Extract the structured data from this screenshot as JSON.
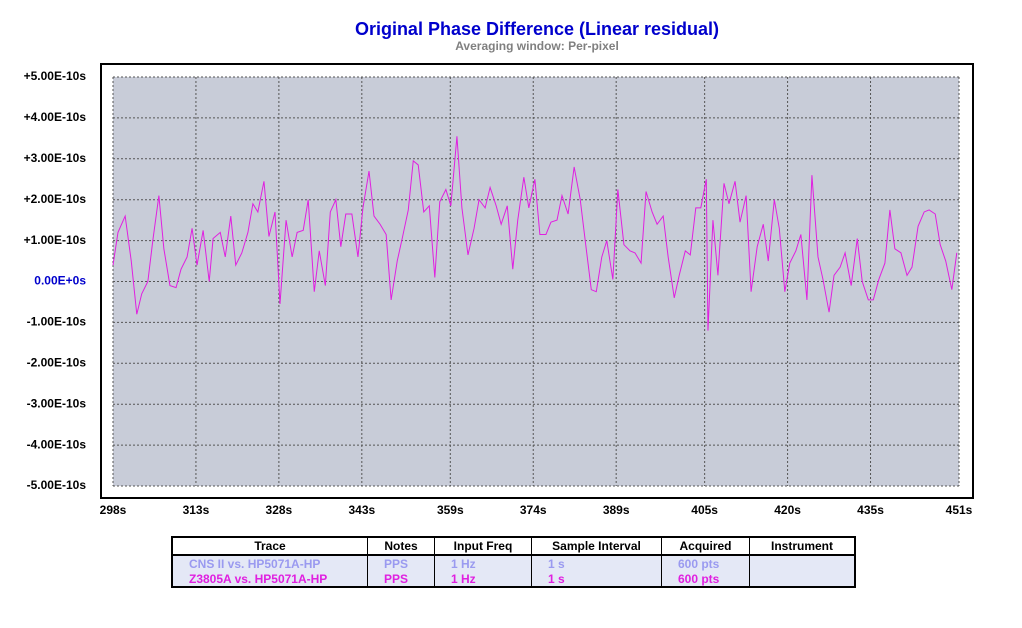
{
  "chart_data": {
    "type": "line",
    "title": "Original Phase Difference (Linear residual)",
    "subtitle": "Averaging window: Per-pixel",
    "xlim": [
      298,
      451
    ],
    "xticks": [
      {
        "value": 298,
        "label": "298s"
      },
      {
        "value": 313,
        "label": "313s"
      },
      {
        "value": 328,
        "label": "328s"
      },
      {
        "value": 343,
        "label": "343s"
      },
      {
        "value": 359,
        "label": "359s"
      },
      {
        "value": 374,
        "label": "374s"
      },
      {
        "value": 389,
        "label": "389s"
      },
      {
        "value": 405,
        "label": "405s"
      },
      {
        "value": 420,
        "label": "420s"
      },
      {
        "value": 435,
        "label": "435s"
      },
      {
        "value": 451,
        "label": "451s"
      }
    ],
    "ylim": [
      -5e-10,
      5e-10
    ],
    "yticks": [
      {
        "value": 5e-10,
        "label": "+5.00E-10s"
      },
      {
        "value": 4e-10,
        "label": "+4.00E-10s"
      },
      {
        "value": 3e-10,
        "label": "+3.00E-10s"
      },
      {
        "value": 2e-10,
        "label": "+2.00E-10s"
      },
      {
        "value": 1e-10,
        "label": "+1.00E-10s"
      },
      {
        "value": 0,
        "label": "0.00E+0s"
      },
      {
        "value": -1e-10,
        "label": "-1.00E-10s"
      },
      {
        "value": -2e-10,
        "label": "-2.00E-10s"
      },
      {
        "value": -3e-10,
        "label": "-3.00E-10s"
      },
      {
        "value": -4e-10,
        "label": "-4.00E-10s"
      },
      {
        "value": -5e-10,
        "label": "-5.00E-10s"
      }
    ],
    "grid": true,
    "x": [
      298.0,
      298.9,
      300.2,
      301.3,
      302.3,
      303.2,
      304.3,
      305.2,
      306.3,
      307.2,
      308.3,
      309.4,
      310.3,
      311.4,
      312.3,
      313.2,
      314.3,
      315.4,
      316.1,
      317.4,
      318.3,
      319.3,
      320.2,
      321.3,
      322.4,
      323.3,
      324.2,
      325.3,
      326.2,
      327.3,
      328.2,
      329.3,
      330.4,
      331.3,
      332.4,
      333.3,
      334.4,
      335.3,
      336.4,
      337.3,
      338.3,
      339.2,
      340.1,
      341.2,
      342.3,
      343.2,
      344.3,
      345.2,
      346.3,
      347.4,
      348.3,
      349.4,
      350.3,
      351.4,
      352.3,
      353.2,
      354.2,
      355.2,
      356.2,
      357.1,
      358.2,
      359.1,
      360.2,
      361.1,
      362.2,
      363.3,
      364.2,
      365.3,
      366.2,
      367.3,
      368.2,
      369.3,
      370.3,
      371.2,
      372.3,
      373.2,
      374.3,
      375.2,
      376.3,
      377.2,
      378.3,
      379.2,
      380.3,
      381.4,
      382.5,
      383.4,
      384.5,
      385.4,
      386.4,
      387.3,
      388.4,
      389.3,
      390.4,
      391.5,
      392.4,
      393.5,
      394.4,
      395.5,
      396.4,
      397.5,
      398.4,
      399.5,
      400.4,
      401.5,
      402.4,
      403.4,
      404.3,
      405.3,
      405.6,
      406.5,
      407.4,
      408.5,
      409.4,
      410.5,
      411.4,
      412.5,
      413.4,
      414.5,
      415.6,
      416.5,
      417.6,
      418.5,
      419.5,
      420.4,
      421.5,
      422.4,
      423.5,
      424.4,
      425.5,
      426.4,
      427.5,
      428.4,
      429.5,
      430.4,
      431.5,
      432.6,
      433.5,
      434.6,
      435.5,
      436.5,
      437.6,
      438.5,
      439.4,
      440.5,
      441.6,
      442.5,
      443.6,
      444.7,
      445.6,
      446.7,
      447.6,
      448.6,
      449.7,
      450.6
    ],
    "series": [
      {
        "name": "Z3805A vs. HP5071A-HP",
        "color": "#e020e0",
        "values": [
          4e-11,
          1.2e-10,
          1.6e-10,
          5e-11,
          -8e-11,
          -3e-11,
          0,
          1e-10,
          2.1e-10,
          8e-11,
          -1e-11,
          -1.5e-11,
          3e-11,
          6e-11,
          1.3e-10,
          4e-11,
          1.25e-10,
          0,
          1.05e-10,
          1.2e-10,
          6e-11,
          1.6e-10,
          4e-11,
          7e-11,
          1.2e-10,
          1.9e-10,
          1.7e-10,
          2.45e-10,
          1.1e-10,
          1.7e-10,
          -5.5e-11,
          1.5e-10,
          6e-11,
          1.2e-10,
          1.25e-10,
          2e-10,
          -2.5e-11,
          7.5e-11,
          -1e-11,
          1.7e-10,
          2e-10,
          8.5e-11,
          1.65e-10,
          1.65e-10,
          6e-11,
          1.8e-10,
          2.7e-10,
          1.6e-10,
          1.4e-10,
          1.15e-10,
          -4.5e-11,
          5e-11,
          1.05e-10,
          1.75e-10,
          2.95e-10,
          2.85e-10,
          1.7e-10,
          1.85e-10,
          1e-11,
          1.95e-10,
          2.25e-10,
          1.85e-10,
          3.55e-10,
          1.8e-10,
          6.5e-11,
          1.3e-10,
          2e-10,
          1.8e-10,
          2.3e-10,
          1.85e-10,
          1.4e-10,
          1.85e-10,
          3e-11,
          1.5e-10,
          2.55e-10,
          1.8e-10,
          2.5e-10,
          1.15e-10,
          1.15e-10,
          1.45e-10,
          1.5e-10,
          2.1e-10,
          1.65e-10,
          2.8e-10,
          2e-10,
          1e-10,
          -2e-11,
          -2.5e-11,
          6e-11,
          1e-10,
          5e-12,
          2.25e-10,
          9e-11,
          7.5e-11,
          7e-11,
          4.5e-11,
          2.2e-10,
          1.7e-10,
          1.4e-10,
          1.6e-10,
          6e-11,
          -4e-11,
          1.5e-11,
          7.5e-11,
          6.5e-11,
          1.8e-10,
          1.8e-10,
          2.5e-10,
          -1.2e-10,
          1.5e-10,
          1.5e-11,
          2.4e-10,
          1.9e-10,
          2.45e-10,
          1.45e-10,
          2.1e-10,
          -2.5e-11,
          8.5e-11,
          1.4e-10,
          5e-11,
          2e-10,
          1.3e-10,
          -2.5e-11,
          4.5e-11,
          7.5e-11,
          1.15e-10,
          -4.5e-11,
          2.6e-10,
          6e-11,
          5e-12,
          -7.5e-11,
          1.5e-11,
          3.5e-11,
          7e-11,
          -1e-11,
          1.05e-10,
          0,
          -4.5e-11,
          -4.5e-11,
          5e-12,
          4.5e-11,
          1.75e-10,
          8e-11,
          7e-11,
          1.5e-11,
          3.5e-11,
          1.35e-10,
          1.7e-10,
          1.75e-10,
          1.65e-10,
          9e-11,
          5e-11,
          -2e-11,
          7e-11
        ]
      }
    ]
  },
  "legend_table": {
    "headers": [
      "Trace",
      "Notes",
      "Input Freq",
      "Sample Interval",
      "Acquired",
      "Instrument"
    ],
    "rows": [
      {
        "color": "#9a9af0",
        "cells": [
          "CNS II vs. HP5071A-HP",
          "PPS",
          "1 Hz",
          "1 s",
          "600 pts"
        ]
      },
      {
        "color": "#e020e0",
        "cells": [
          "Z3805A vs. HP5071A-HP",
          "PPS",
          "1 Hz",
          "1 s",
          "600 pts"
        ]
      }
    ]
  }
}
